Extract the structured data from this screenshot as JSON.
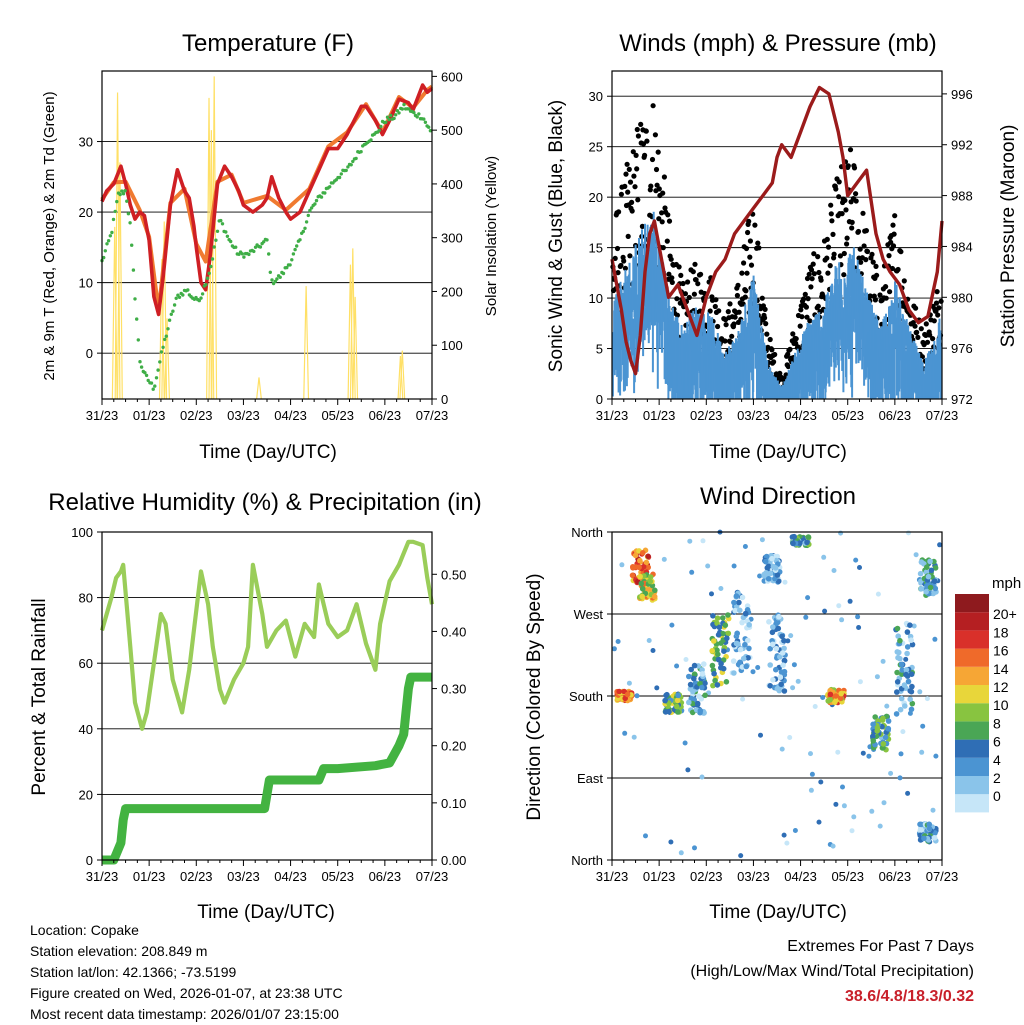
{
  "station": {
    "location": "Location: Copake",
    "elevation": "Station elevation: 208.849 m",
    "latlon": "Station lat/lon: 42.1366; -73.5199",
    "created": "Figure created on Wed, 2026-01-07, at 23:38 UTC",
    "latest": "Most recent data timestamp: 2026/01/07 23:15:00"
  },
  "extremes": {
    "title": "Extremes For Past 7 Days",
    "subtitle": "(High/Low/Max Wind/Total Precipitation)",
    "values": "38.6/4.8/18.3/0.32"
  },
  "colors": {
    "temp2m": "#cf1f24",
    "temp9m": "#f07a30",
    "dewpoint": "#3fae47",
    "solar": "#ffe066",
    "gust": "#000000",
    "wind": "#4b94d2",
    "pressure": "#9b1b1b",
    "rh": "#9acd59",
    "precip": "#43b341"
  },
  "chart_data": [
    {
      "type": "line",
      "title": "Temperature (F)",
      "xlabel": "Time (Day/UTC)",
      "ylabel": "2m & 9m T (Red, Orange) & 2m Td (Green)",
      "ylabel_right": "Solar Insolation (Yellow)",
      "xticks": [
        "31/23",
        "01/23",
        "02/23",
        "03/23",
        "04/23",
        "05/23",
        "06/23",
        "07/23"
      ],
      "xlim": [
        0,
        7
      ],
      "ylim": [
        -6.5,
        40
      ],
      "yticks": [
        0,
        10,
        20,
        30
      ],
      "ylim_right": [
        0,
        610
      ],
      "yticks_right": [
        0,
        100,
        200,
        300,
        400,
        500,
        600
      ],
      "series": [
        {
          "name": "2m T",
          "x": [
            0,
            0.1,
            0.25,
            0.4,
            0.5,
            0.6,
            0.7,
            0.8,
            0.9,
            1.0,
            1.1,
            1.2,
            1.3,
            1.45,
            1.6,
            1.75,
            1.85,
            1.95,
            2.0,
            2.1,
            2.2,
            2.3,
            2.45,
            2.6,
            2.75,
            2.9,
            3.0,
            3.2,
            3.4,
            3.5,
            3.6,
            3.75,
            3.9,
            4.0,
            4.2,
            4.4,
            4.6,
            4.8,
            5.0,
            5.2,
            5.35,
            5.5,
            5.6,
            5.8,
            5.95,
            6.1,
            6.3,
            6.5,
            6.6,
            6.8,
            6.9,
            7.0
          ],
          "values": [
            21.5,
            23,
            24,
            26.5,
            24,
            21,
            19,
            20,
            19.5,
            16,
            8,
            5.5,
            11,
            21,
            26,
            23,
            22,
            18,
            15,
            10,
            9,
            14,
            24,
            26.5,
            25,
            23,
            21,
            20,
            21,
            22,
            25,
            22,
            20,
            19,
            20,
            23,
            26,
            29,
            29,
            31,
            33,
            35,
            35,
            33,
            31,
            33,
            36,
            35.5,
            34.5,
            38,
            37,
            37.5
          ]
        },
        {
          "name": "9m T",
          "x": [
            0,
            0.25,
            0.5,
            0.8,
            1.0,
            1.2,
            1.45,
            1.75,
            2.0,
            2.2,
            2.45,
            2.75,
            3.0,
            3.5,
            3.9,
            4.4,
            4.8,
            5.2,
            5.6,
            5.95,
            6.3,
            6.6,
            6.9,
            7.0
          ],
          "values": [
            21.8,
            24.2,
            24.3,
            20.3,
            16.5,
            6,
            21.3,
            23.3,
            15.5,
            13,
            24.3,
            25.3,
            21.3,
            22.3,
            20.3,
            23.3,
            29.3,
            31.3,
            35.3,
            31.3,
            36.3,
            34.8,
            37.3,
            37.8
          ]
        },
        {
          "name": "2m Td",
          "x": [
            0,
            0.2,
            0.35,
            0.5,
            0.6,
            0.7,
            0.8,
            0.9,
            1.0,
            1.1,
            1.3,
            1.5,
            1.6,
            1.8,
            1.9,
            2.0,
            2.1,
            2.3,
            2.5,
            2.7,
            2.9,
            3.1,
            3.3,
            3.5,
            3.6,
            3.8,
            4.0,
            4.2,
            4.4,
            4.6,
            4.8,
            5.0,
            5.2,
            5.4,
            5.6,
            5.8,
            6.0,
            6.2,
            6.4,
            6.6,
            6.8,
            7.0
          ],
          "values": [
            13,
            17,
            22.5,
            23,
            18,
            8,
            -1,
            -3,
            -4,
            -5,
            1,
            6,
            8,
            9,
            8,
            7.5,
            8,
            12,
            19,
            16,
            14,
            14,
            15,
            16,
            10,
            11,
            13,
            16,
            20,
            22,
            23.5,
            25,
            26,
            28,
            30,
            31,
            33,
            33.5,
            35,
            34,
            33.5,
            31
          ]
        },
        {
          "name": "Solar",
          "peaks": [
            [
              0.27,
              320
            ],
            [
              0.33,
              570
            ],
            [
              0.38,
              440
            ],
            [
              1.27,
              260
            ],
            [
              1.32,
              330
            ],
            [
              1.38,
              150
            ],
            [
              2.27,
              560
            ],
            [
              2.32,
              500
            ],
            [
              2.38,
              600
            ],
            [
              3.33,
              40
            ],
            [
              4.33,
              210
            ],
            [
              5.27,
              250
            ],
            [
              5.32,
              280
            ],
            [
              5.37,
              190
            ],
            [
              6.33,
              80
            ],
            [
              6.37,
              90
            ]
          ]
        }
      ]
    },
    {
      "type": "scatter",
      "title": "Winds (mph) & Pressure (mb)",
      "xlabel": "Time (Day/UTC)",
      "ylabel": "Sonic Wind & Gust (Blue, Black)",
      "ylabel_right": "Station Pressure (Maroon)",
      "xticks": [
        "31/23",
        "01/23",
        "02/23",
        "03/23",
        "04/23",
        "05/23",
        "06/23",
        "07/23"
      ],
      "xlim": [
        0,
        7
      ],
      "ylim": [
        0,
        32.5
      ],
      "yticks": [
        0,
        5,
        10,
        15,
        20,
        25,
        30
      ],
      "ylim_right": [
        972,
        997.8
      ],
      "yticks_right": [
        972,
        976,
        980,
        984,
        988,
        992,
        996
      ],
      "wind_envelope": {
        "x": [
          0,
          0.3,
          0.6,
          0.9,
          1.2,
          1.5,
          1.8,
          2.1,
          2.4,
          2.7,
          3.0,
          3.3,
          3.6,
          3.9,
          4.2,
          4.5,
          4.8,
          5.1,
          5.4,
          5.7,
          6.0,
          6.3,
          6.6,
          6.9,
          7.0
        ],
        "values": [
          9,
          11,
          14,
          16,
          9,
          6,
          8,
          7,
          4,
          6,
          11,
          3,
          1,
          4,
          7,
          8,
          12,
          13,
          9,
          6,
          10,
          6,
          3,
          6,
          8
        ]
      },
      "gust_envelope": {
        "x": [
          0,
          0.3,
          0.6,
          0.9,
          1.2,
          1.5,
          1.8,
          2.1,
          2.4,
          2.7,
          3.0,
          3.3,
          3.6,
          3.9,
          4.2,
          4.5,
          4.8,
          5.1,
          5.4,
          5.7,
          6.0,
          6.3,
          6.6,
          6.9,
          7.0
        ],
        "values": [
          15,
          20,
          25,
          27,
          16,
          10,
          12,
          11,
          7,
          11,
          18,
          6,
          2,
          7,
          12,
          14,
          20,
          22,
          15,
          10,
          17,
          10,
          6,
          10,
          13
        ]
      },
      "series": [
        {
          "name": "Pressure",
          "x": [
            0,
            0.1,
            0.2,
            0.3,
            0.4,
            0.5,
            0.6,
            0.7,
            0.8,
            0.9,
            1.0,
            1.1,
            1.2,
            1.4,
            1.6,
            1.8,
            2.0,
            2.2,
            2.4,
            2.6,
            2.8,
            3.0,
            3.2,
            3.4,
            3.5,
            3.6,
            3.8,
            4.0,
            4.2,
            4.4,
            4.6,
            4.8,
            4.9,
            5.0,
            5.2,
            5.4,
            5.6,
            5.75,
            5.9,
            6.1,
            6.3,
            6.5,
            6.7,
            6.9,
            7.0
          ],
          "values": [
            983,
            981,
            979,
            976.5,
            975,
            974,
            977,
            982,
            985,
            986,
            984,
            982,
            980,
            981,
            979,
            977,
            980,
            982,
            983,
            985,
            986,
            987,
            988,
            989,
            991,
            992,
            991,
            993,
            995,
            996.5,
            996,
            993,
            991,
            988,
            989,
            990,
            985,
            983,
            982,
            981,
            979,
            978,
            978.5,
            982,
            986
          ]
        }
      ]
    },
    {
      "type": "line",
      "title": "Relative Humidity (%) & Precipitation (in)",
      "xlabel": "Time (Day/UTC)",
      "ylabel": "Percent & Total Rainfall",
      "xticks": [
        "31/23",
        "01/23",
        "02/23",
        "03/23",
        "04/23",
        "05/23",
        "06/23",
        "07/23"
      ],
      "xlim": [
        0,
        7
      ],
      "ylim": [
        0,
        100
      ],
      "yticks": [
        0,
        20,
        40,
        60,
        80,
        100
      ],
      "ylim_right": [
        0,
        0.574
      ],
      "yticks_right": [
        "0.00",
        "0.10",
        "0.20",
        "0.30",
        "0.40",
        "0.50"
      ],
      "series": [
        {
          "name": "RH",
          "x": [
            0,
            0.1,
            0.2,
            0.3,
            0.4,
            0.45,
            0.6,
            0.7,
            0.85,
            0.95,
            1.1,
            1.25,
            1.35,
            1.5,
            1.7,
            1.85,
            1.95,
            2.1,
            2.25,
            2.35,
            2.5,
            2.6,
            2.8,
            3.0,
            3.1,
            3.2,
            3.4,
            3.5,
            3.7,
            3.9,
            4.1,
            4.3,
            4.5,
            4.6,
            4.8,
            5.0,
            5.2,
            5.4,
            5.6,
            5.8,
            5.9,
            6.1,
            6.3,
            6.5,
            6.6,
            6.8,
            6.9,
            7.0
          ],
          "values": [
            70,
            75,
            80,
            86,
            88,
            90,
            65,
            48,
            40,
            45,
            60,
            75,
            72,
            55,
            45,
            58,
            70,
            88,
            78,
            65,
            52,
            48,
            55,
            60,
            65,
            90,
            75,
            65,
            70,
            73,
            62,
            72,
            68,
            84,
            72,
            68,
            70,
            78,
            66,
            58,
            72,
            85,
            90,
            97,
            97,
            96,
            86,
            78
          ]
        },
        {
          "name": "Total Rainfall",
          "x": [
            0,
            0.25,
            0.4,
            0.45,
            0.5,
            1.0,
            2.0,
            3.0,
            3.45,
            3.55,
            4.0,
            4.6,
            4.7,
            5.0,
            5.8,
            6.1,
            6.3,
            6.4,
            6.5,
            6.55,
            7.0
          ],
          "values": [
            0,
            0,
            0.03,
            0.07,
            0.09,
            0.09,
            0.09,
            0.09,
            0.09,
            0.14,
            0.14,
            0.14,
            0.16,
            0.16,
            0.165,
            0.17,
            0.2,
            0.22,
            0.3,
            0.32,
            0.32
          ]
        }
      ]
    },
    {
      "type": "scatter",
      "title": "Wind Direction",
      "xlabel": "Time (Day/UTC)",
      "ylabel": "Direction (Colored By Speed)",
      "xticks": [
        "31/23",
        "01/23",
        "02/23",
        "03/23",
        "04/23",
        "05/23",
        "06/23",
        "07/23"
      ],
      "xlim": [
        0,
        7
      ],
      "yticks": [
        "North",
        "East",
        "South",
        "West",
        "North"
      ],
      "ylim": [
        0,
        360
      ],
      "colorbar": {
        "title": "mph",
        "labels": [
          "0",
          "2",
          "4",
          "6",
          "8",
          "10",
          "12",
          "14",
          "16",
          "18",
          "20+"
        ],
        "colors": [
          "#c6e6f8",
          "#8ac4ea",
          "#4b94d2",
          "#2f6eb5",
          "#4aa655",
          "#88c440",
          "#e8d63a",
          "#f6a635",
          "#ef6a2a",
          "#d9302a",
          "#b51f22",
          "#8e1a1e"
        ]
      },
      "clusters": [
        {
          "x": 0.25,
          "dir": 180,
          "spread": 10,
          "speed": 15
        },
        {
          "x": 0.6,
          "dir": 320,
          "spread": 40,
          "speed": 16
        },
        {
          "x": 0.75,
          "dir": 300,
          "spread": 30,
          "speed": 12
        },
        {
          "x": 1.3,
          "dir": 172,
          "spread": 20,
          "speed": 8
        },
        {
          "x": 1.8,
          "dir": 190,
          "spread": 60,
          "speed": 4
        },
        {
          "x": 2.3,
          "dir": 230,
          "spread": 80,
          "speed": 9
        },
        {
          "x": 2.75,
          "dir": 250,
          "spread": 90,
          "speed": 3
        },
        {
          "x": 3.5,
          "dir": 230,
          "spread": 90,
          "speed": 3
        },
        {
          "x": 4.0,
          "dir": 350,
          "spread": 10,
          "speed": 6
        },
        {
          "x": 3.4,
          "dir": 320,
          "spread": 30,
          "speed": 2
        },
        {
          "x": 4.75,
          "dir": 180,
          "spread": 15,
          "speed": 14
        },
        {
          "x": 5.7,
          "dir": 140,
          "spread": 40,
          "speed": 7
        },
        {
          "x": 6.2,
          "dir": 210,
          "spread": 100,
          "speed": 4
        },
        {
          "x": 6.7,
          "dir": 30,
          "spread": 20,
          "speed": 4
        },
        {
          "x": 6.7,
          "dir": 310,
          "spread": 40,
          "speed": 5
        }
      ]
    }
  ]
}
